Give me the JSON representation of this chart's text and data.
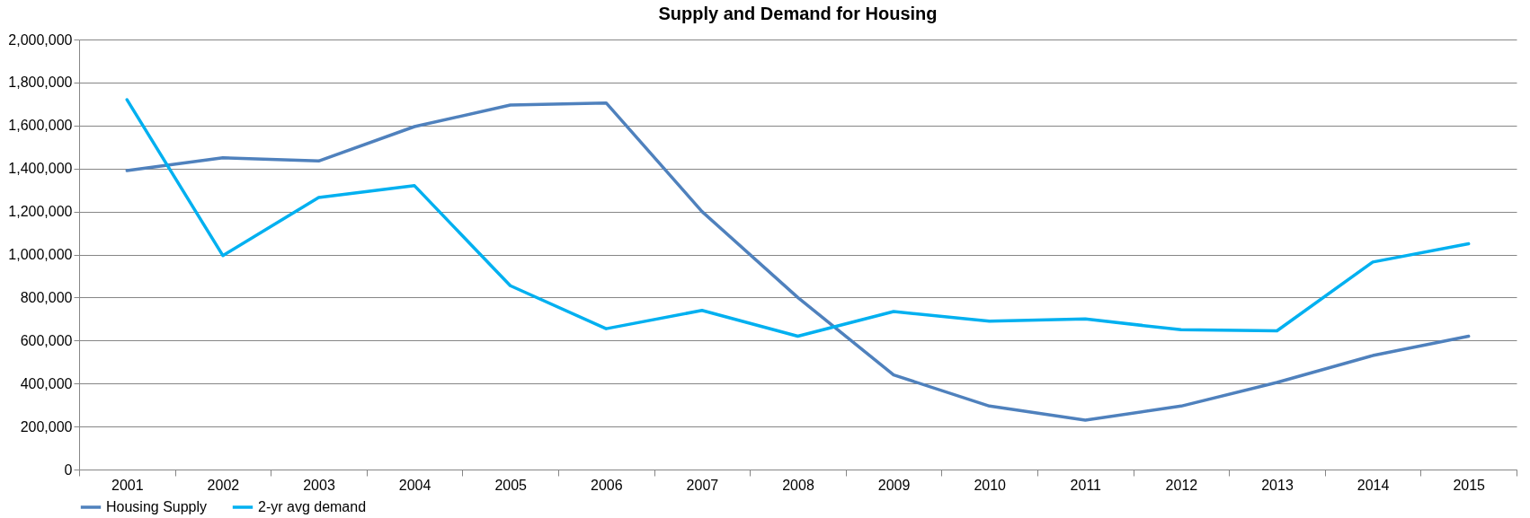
{
  "chart_data": {
    "type": "line",
    "title": "Supply and Demand for Housing",
    "categories": [
      "2001",
      "2002",
      "2003",
      "2004",
      "2005",
      "2006",
      "2007",
      "2008",
      "2009",
      "2010",
      "2011",
      "2012",
      "2013",
      "2014",
      "2015"
    ],
    "series": [
      {
        "name": "Housing Supply",
        "color": "#4f81bd",
        "values": [
          1390000,
          1450000,
          1435000,
          1595000,
          1695000,
          1705000,
          1200000,
          800000,
          440000,
          295000,
          230000,
          295000,
          405000,
          530000,
          620000
        ]
      },
      {
        "name": "2-yr avg demand",
        "color": "#00b0f0",
        "values": [
          1720000,
          995000,
          1265000,
          1320000,
          855000,
          655000,
          740000,
          620000,
          735000,
          690000,
          700000,
          650000,
          645000,
          965000,
          1050000
        ]
      }
    ],
    "ylim": [
      0,
      2000000
    ],
    "yticks": [
      0,
      {
        "value": 200000,
        "label": "200,000"
      },
      {
        "value": 400000,
        "label": "400,000"
      },
      {
        "value": 600000,
        "label": "600,000"
      },
      {
        "value": 800000,
        "label": "800,000"
      },
      {
        "value": 1000000,
        "label": "1,000,000"
      },
      {
        "value": 1200000,
        "label": "1,200,000"
      },
      {
        "value": 1400000,
        "label": "1,400,000"
      },
      {
        "value": 1600000,
        "label": "1,600,000"
      },
      {
        "value": 1800000,
        "label": "1,800,000"
      },
      {
        "value": 2000000,
        "label": "2,000,000"
      }
    ],
    "grid": "y",
    "legend": "bottom",
    "marker": "none",
    "line_style": "solid"
  }
}
